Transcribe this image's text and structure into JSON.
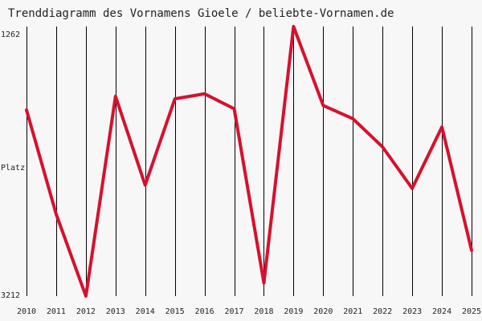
{
  "colors": {
    "background": "#f7f7f7",
    "gridline": "#000000",
    "series_line": "#d5112e",
    "text": "#222222"
  },
  "chart_data": {
    "type": "line",
    "title": "Trenddiagramm des Vornamens Gioele / beliebte-Vornamen.de",
    "ylabel": "Platz",
    "y_axis_inverted": true,
    "ylim": [
      1262,
      3212
    ],
    "y_tick_labels": [
      "1262",
      "3212"
    ],
    "grid": "vertical lines at every year",
    "x": [
      "2010",
      "2011",
      "2012",
      "2013",
      "2014",
      "2015",
      "2016",
      "2017",
      "2018",
      "2019",
      "2020",
      "2021",
      "2022",
      "2023",
      "2024",
      "2025"
    ],
    "series": [
      {
        "values": [
          1866,
          2619,
          3212,
          1767,
          2409,
          1785,
          1749,
          1857,
          3117,
          1262,
          1833,
          1929,
          2133,
          2433,
          1989,
          2880
        ]
      }
    ]
  }
}
